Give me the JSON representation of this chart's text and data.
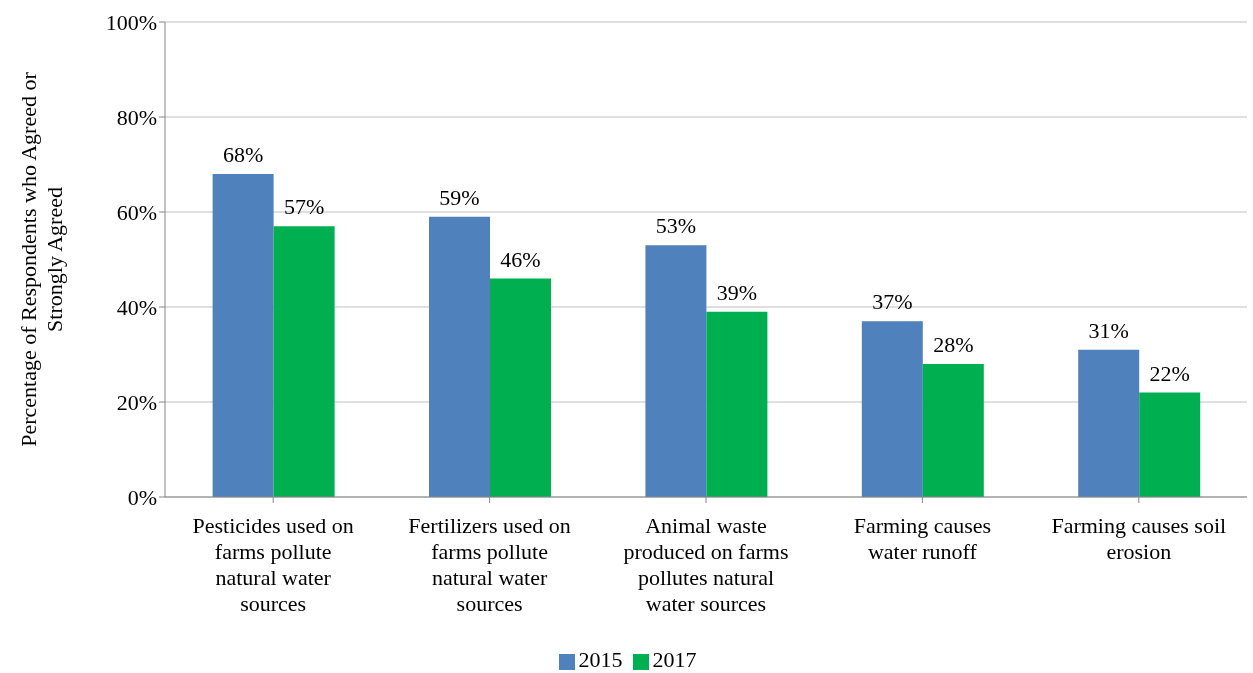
{
  "chart_data": {
    "type": "bar",
    "ylabel": "Percentage of Respondents who Agreed or Strongly Agreed",
    "categories": [
      "Pesticides used on farms pollute natural water sources",
      "Fertilizers used on farms pollute natural water sources",
      "Animal waste produced on farms pollutes natural water sources",
      "Farming causes water runoff",
      "Farming causes soil erosion"
    ],
    "series": [
      {
        "name": "2015",
        "color": "#4f81bd",
        "values": [
          68,
          59,
          53,
          37,
          31
        ],
        "value_labels": [
          "68%",
          "59%",
          "53%",
          "37%",
          "31%"
        ]
      },
      {
        "name": "2017",
        "color": "#00b050",
        "values": [
          57,
          46,
          39,
          28,
          22
        ],
        "value_labels": [
          "57%",
          "46%",
          "39%",
          "28%",
          "22%"
        ]
      }
    ],
    "ylim": [
      0,
      100
    ],
    "yticks": [
      {
        "value": 0,
        "label": "0%"
      },
      {
        "value": 20,
        "label": "20%"
      },
      {
        "value": 40,
        "label": "40%"
      },
      {
        "value": 60,
        "label": "60%"
      },
      {
        "value": 80,
        "label": "80%"
      },
      {
        "value": 100,
        "label": "100%"
      }
    ],
    "grid": "y",
    "legend": "bottom"
  }
}
